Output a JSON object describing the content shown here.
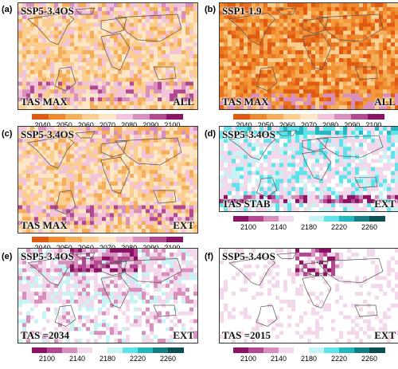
{
  "figure": {
    "panels": [
      {
        "letter": "(a)",
        "scenario": "SSP5-3.4OS",
        "variable": "TAS MAX",
        "mode": "ALL",
        "colorbar": "A",
        "style": "orange-mixed"
      },
      {
        "letter": "(b)",
        "scenario": "SSP1-1.9",
        "variable": "TAS MAX",
        "mode": "ALL",
        "colorbar": "A",
        "style": "orange-strong"
      },
      {
        "letter": "(c)",
        "scenario": "SSP5-3.4OS",
        "variable": "TAS MAX",
        "mode": "EXT",
        "colorbar": "A",
        "style": "orange-mixed"
      },
      {
        "letter": "(d)",
        "scenario": "SSP5-3.4OS",
        "variable": "TAS STAB",
        "mode": "EXT",
        "colorbar": "B",
        "style": "cool-stab"
      },
      {
        "letter": "(e)",
        "scenario": "SSP5-3.4OS",
        "variable": "TAS =2034",
        "mode": "EXT",
        "colorbar": "B",
        "style": "cool-2034"
      },
      {
        "letter": "(f)",
        "scenario": "SSP5-3.4OS",
        "variable": "TAS =2015",
        "mode": "EXT",
        "colorbar": "B",
        "style": "sparse-2015"
      }
    ],
    "colorbars": {
      "A": {
        "ticks": [
          "2040",
          "2050",
          "2060",
          "2070",
          "2080",
          "2090",
          "2100"
        ],
        "colors": [
          "#e05a12",
          "#ef8a2c",
          "#f6ad5a",
          "#fbce8f",
          "#fde6c5",
          "#f1c4dc",
          "#d88fbd",
          "#b2488f",
          "#8c1266"
        ]
      },
      "B": {
        "ticks": [
          "2100",
          "2140",
          "2180",
          "2220",
          "2260"
        ],
        "colors": [
          "#8c1266",
          "#b2488f",
          "#d88fbd",
          "#f3d7ea",
          "#ffffff",
          "#c6f4f5",
          "#5fe3ea",
          "#22b8be",
          "#117f83",
          "#0b4f52"
        ]
      }
    }
  }
}
